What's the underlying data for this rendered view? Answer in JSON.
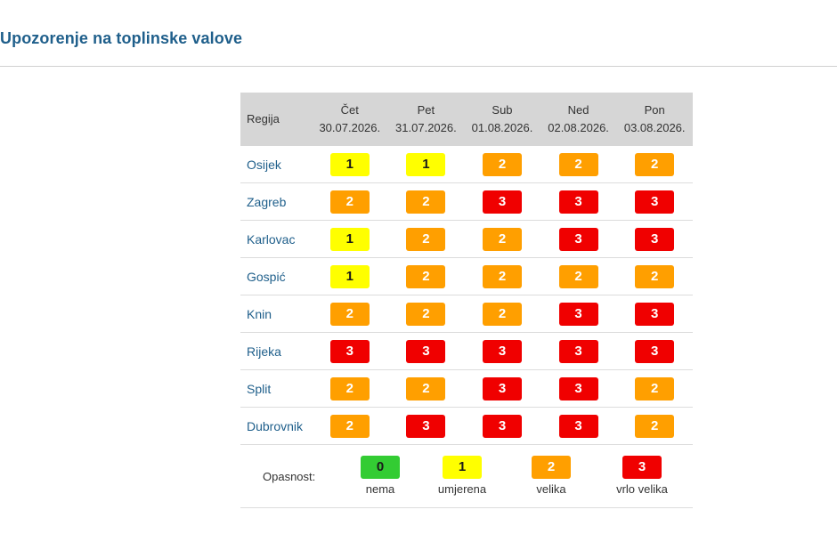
{
  "title": "Upozorenje na toplinske valove",
  "table": {
    "region_header": "Regija",
    "days": [
      {
        "name": "Čet",
        "date": "30.07.2026."
      },
      {
        "name": "Pet",
        "date": "31.07.2026."
      },
      {
        "name": "Sub",
        "date": "01.08.2026."
      },
      {
        "name": "Ned",
        "date": "02.08.2026."
      },
      {
        "name": "Pon",
        "date": "03.08.2026."
      }
    ],
    "rows": [
      {
        "region": "Osijek",
        "levels": [
          1,
          1,
          2,
          2,
          2
        ]
      },
      {
        "region": "Zagreb",
        "levels": [
          2,
          2,
          3,
          3,
          3
        ]
      },
      {
        "region": "Karlovac",
        "levels": [
          1,
          2,
          2,
          3,
          3
        ]
      },
      {
        "region": "Gospić",
        "levels": [
          1,
          2,
          2,
          2,
          2
        ]
      },
      {
        "region": "Knin",
        "levels": [
          2,
          2,
          2,
          3,
          3
        ]
      },
      {
        "region": "Rijeka",
        "levels": [
          3,
          3,
          3,
          3,
          3
        ]
      },
      {
        "region": "Split",
        "levels": [
          2,
          2,
          3,
          3,
          2
        ]
      },
      {
        "region": "Dubrovnik",
        "levels": [
          2,
          3,
          3,
          3,
          2
        ]
      }
    ]
  },
  "legend": {
    "label": "Opasnost:",
    "items": [
      {
        "level": "0",
        "text": "nema"
      },
      {
        "level": "1",
        "text": "umjerena"
      },
      {
        "level": "2",
        "text": "velika"
      },
      {
        "level": "3",
        "text": "vrlo velika"
      }
    ]
  },
  "colors": {
    "level_0": "#33cc33",
    "level_1": "#ffff00",
    "level_2": "#ff9f00",
    "level_3": "#f00000",
    "title": "#1f5f8b",
    "header_bg": "#d6d6d6"
  }
}
